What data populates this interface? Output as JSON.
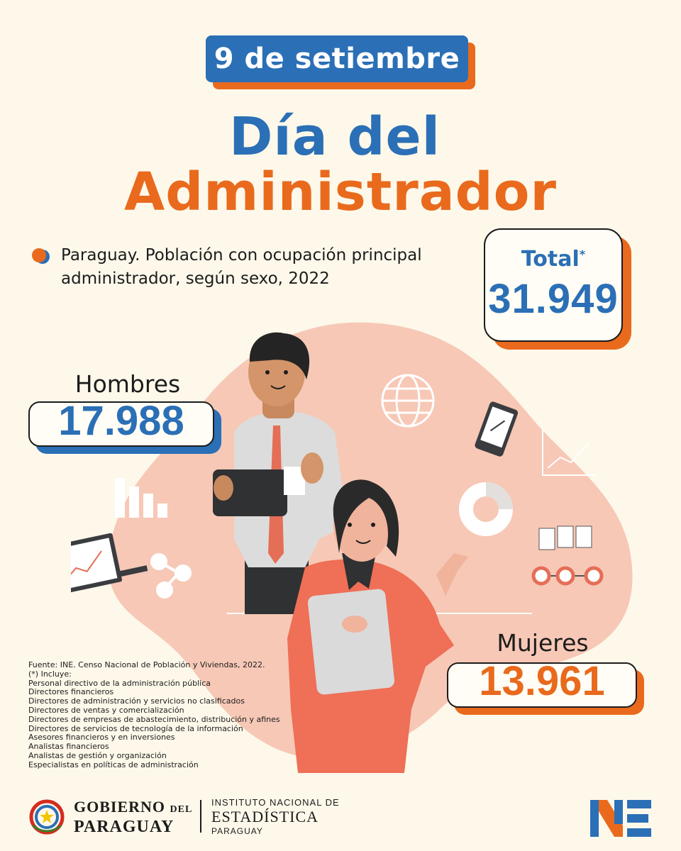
{
  "header": {
    "date": "9 de setiembre",
    "title_line1": "Día del",
    "title_line2": "Administrador"
  },
  "subtitle_line1": "Paraguay. Población con ocupación principal",
  "subtitle_line2": "administrador, según sexo, 2022",
  "total": {
    "label": "Total",
    "marker": "*",
    "value": "31.949"
  },
  "hombres": {
    "label": "Hombres",
    "value": "17.988"
  },
  "mujeres": {
    "label": "Mujeres",
    "value": "13.961"
  },
  "footnote": {
    "source": "Fuente: INE. Censo Nacional de Población y Viviendas, 2022.",
    "includes": "(*) Incluye:",
    "items": [
      "Personal directivo de la administración pública",
      "Directores financieros",
      "Directores de administración y servicios no clasificados",
      "Directores de ventas y comercialización",
      "Directores de empresas de abastecimiento, distribución y afines",
      "Directores de servicios de tecnología de la información",
      "Asesores financieros y en inversiones",
      "Analistas financieros",
      "Analistas de gestión y organización",
      "Especialistas en políticas de administración"
    ]
  },
  "footer": {
    "gov_line1_a": "GOBIERNO",
    "gov_line1_b": "DEL",
    "gov_line2": "PARAGUAY",
    "ine_line1": "INSTITUTO NACIONAL DE",
    "ine_line2": "ESTADÍSTICA",
    "ine_line3": "PARAGUAY"
  },
  "colors": {
    "background": "#fdf8ea",
    "blue": "#2b6fb6",
    "orange": "#e96a1d",
    "blob": "#f7c8b6"
  }
}
